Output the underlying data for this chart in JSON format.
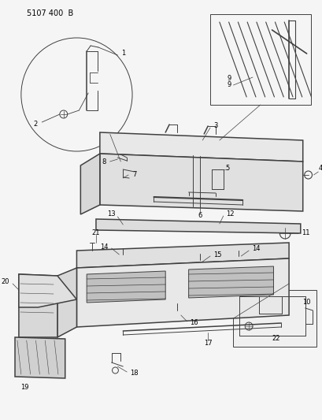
{
  "title": "5107 400  B",
  "background_color": "#f0f0f0",
  "line_color": "#404040",
  "label_color": "#000000",
  "fig_width": 4.1,
  "fig_height": 5.33,
  "dpi": 100
}
